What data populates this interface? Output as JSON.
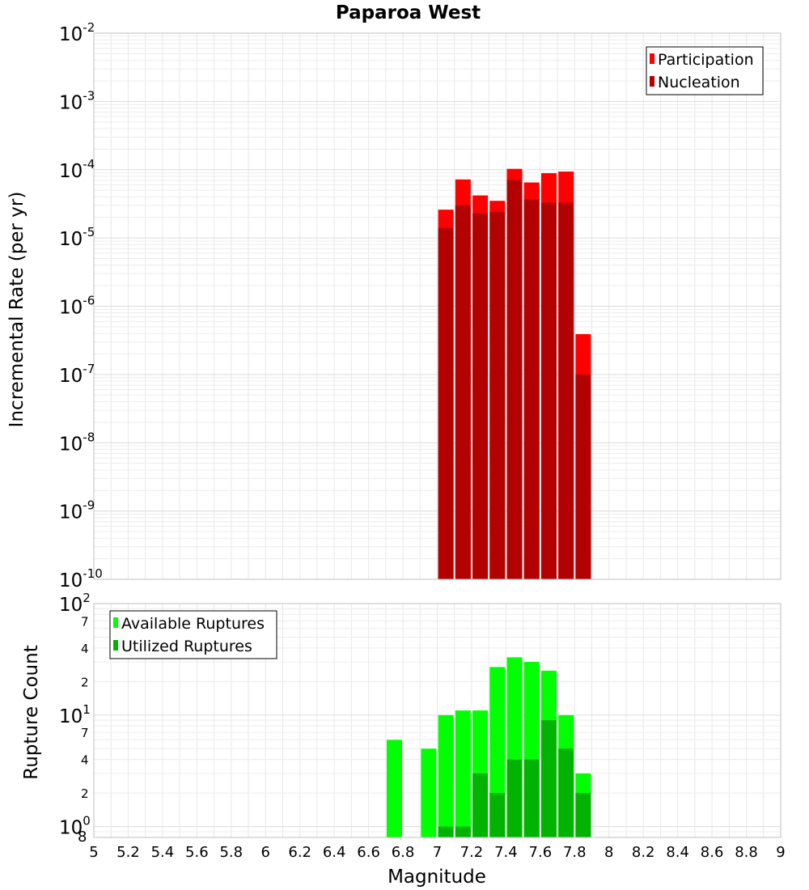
{
  "chart_data": [
    {
      "type": "bar",
      "title": "Paparoa West",
      "xlabel": "",
      "ylabel": "Incremental Rate (per yr)",
      "yscale": "log",
      "xlim": [
        5,
        9
      ],
      "ylim": [
        1e-10,
        0.01
      ],
      "grid": true,
      "legend_position": "top-right",
      "y_ticks": [
        {
          "base": "10",
          "exp": "-10"
        },
        {
          "base": "10",
          "exp": "-9"
        },
        {
          "base": "10",
          "exp": "-8"
        },
        {
          "base": "10",
          "exp": "-7"
        },
        {
          "base": "10",
          "exp": "-6"
        },
        {
          "base": "10",
          "exp": "-5"
        },
        {
          "base": "10",
          "exp": "-4"
        },
        {
          "base": "10",
          "exp": "-3"
        },
        {
          "base": "10",
          "exp": "-2"
        }
      ],
      "x": [
        7.05,
        7.15,
        7.25,
        7.35,
        7.45,
        7.55,
        7.65,
        7.75,
        7.85
      ],
      "series": [
        {
          "name": "Participation",
          "color": "#ff0000",
          "values": [
            2.6e-05,
            7.2e-05,
            4.2e-05,
            3.5e-05,
            0.000103,
            6.5e-05,
            8.9e-05,
            9.4e-05,
            3.9e-07
          ]
        },
        {
          "name": "Nucleation",
          "color": "#b30000",
          "values": [
            1.4e-05,
            3e-05,
            2.3e-05,
            2.4e-05,
            7.1e-05,
            3.7e-05,
            3.3e-05,
            3.3e-05,
            1e-07
          ]
        }
      ]
    },
    {
      "type": "bar",
      "title": "",
      "xlabel": "Magnitude",
      "ylabel": "Rupture Count",
      "yscale": "log",
      "xlim": [
        5,
        9
      ],
      "ylim": [
        0.8,
        100
      ],
      "grid": true,
      "legend_position": "top-left",
      "x_ticks": [
        "5",
        "5.2",
        "5.4",
        "5.6",
        "5.8",
        "6",
        "6.2",
        "6.4",
        "6.6",
        "6.8",
        "7",
        "7.2",
        "7.4",
        "7.6",
        "7.8",
        "8",
        "8.2",
        "8.4",
        "8.6",
        "8.8",
        "9"
      ],
      "y_ticks": [
        {
          "base": "10",
          "exp": "0"
        },
        {
          "base": "10",
          "exp": "1"
        },
        {
          "base": "10",
          "exp": "2"
        }
      ],
      "y_minor_labels": [
        "8",
        "2",
        "4",
        "7",
        "2",
        "4",
        "7"
      ],
      "x": [
        6.75,
        6.95,
        7.05,
        7.15,
        7.25,
        7.35,
        7.45,
        7.55,
        7.65,
        7.75,
        7.85
      ],
      "series": [
        {
          "name": "Available Ruptures",
          "color": "#00ff00",
          "values": [
            6,
            5,
            10,
            11,
            11,
            27,
            33,
            30,
            25,
            10,
            3
          ]
        },
        {
          "name": "Utilized Ruptures",
          "color": "#00b300",
          "values": [
            0,
            0,
            1,
            1,
            3,
            2,
            4,
            4,
            9,
            5,
            2
          ]
        }
      ]
    }
  ]
}
